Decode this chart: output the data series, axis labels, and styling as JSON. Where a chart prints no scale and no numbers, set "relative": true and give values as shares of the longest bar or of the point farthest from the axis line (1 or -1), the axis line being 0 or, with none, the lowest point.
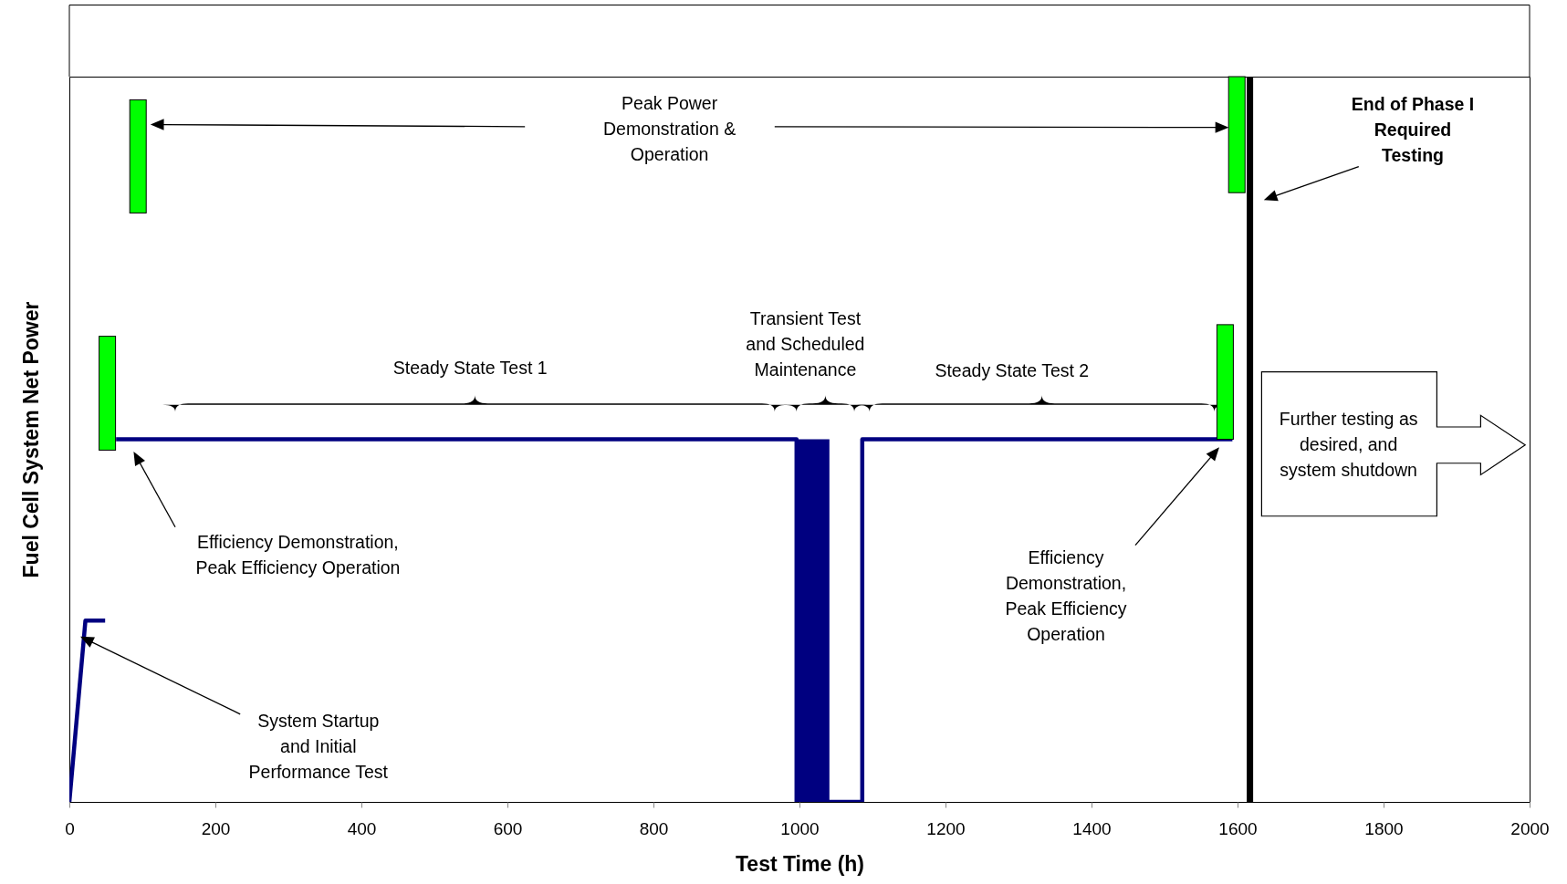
{
  "chart_data": {
    "type": "line",
    "relative": true,
    "xlabel": "Test Time (h)",
    "ylabel": "Fuel Cell System Net Power",
    "xlim": [
      0,
      2000
    ],
    "xticks": [
      0,
      200,
      400,
      600,
      800,
      1000,
      1200,
      1400,
      1600,
      1800,
      2000
    ],
    "tick_labels": "x",
    "grid": false,
    "series": [
      {
        "color": "#000080",
        "x": [
          0,
          22,
          49
        ],
        "values": [
          0,
          0.5,
          0.5
        ]
      },
      {
        "color": "#000080",
        "x": [
          64,
          996,
          996,
          1041,
          1086,
          1086,
          1593
        ],
        "values": [
          1,
          1,
          0,
          0,
          0,
          1,
          1
        ]
      },
      {
        "type": "area",
        "color": "#000080",
        "x": [
          996,
          1041
        ],
        "values": [
          1,
          1
        ]
      }
    ],
    "ref_lines": [
      {
        "axis": "x",
        "value": 1617,
        "color": "#000000"
      }
    ],
    "annotations": [
      "Peak Power\nDemonstration &\nOperation",
      "End of Phase I\nRequired\nTesting",
      "Steady State Test 1",
      "Transient Test\nand Scheduled\nMaintenance",
      "Steady State Test 2",
      "Further testing as\ndesired, and\nsystem shutdown",
      "Efficiency Demonstration,\nPeak Efficiency Operation",
      "Efficiency\nDemonstration,\nPeak Efficiency\nOperation",
      "System Startup\nand Initial\nPerformance Test"
    ]
  }
}
